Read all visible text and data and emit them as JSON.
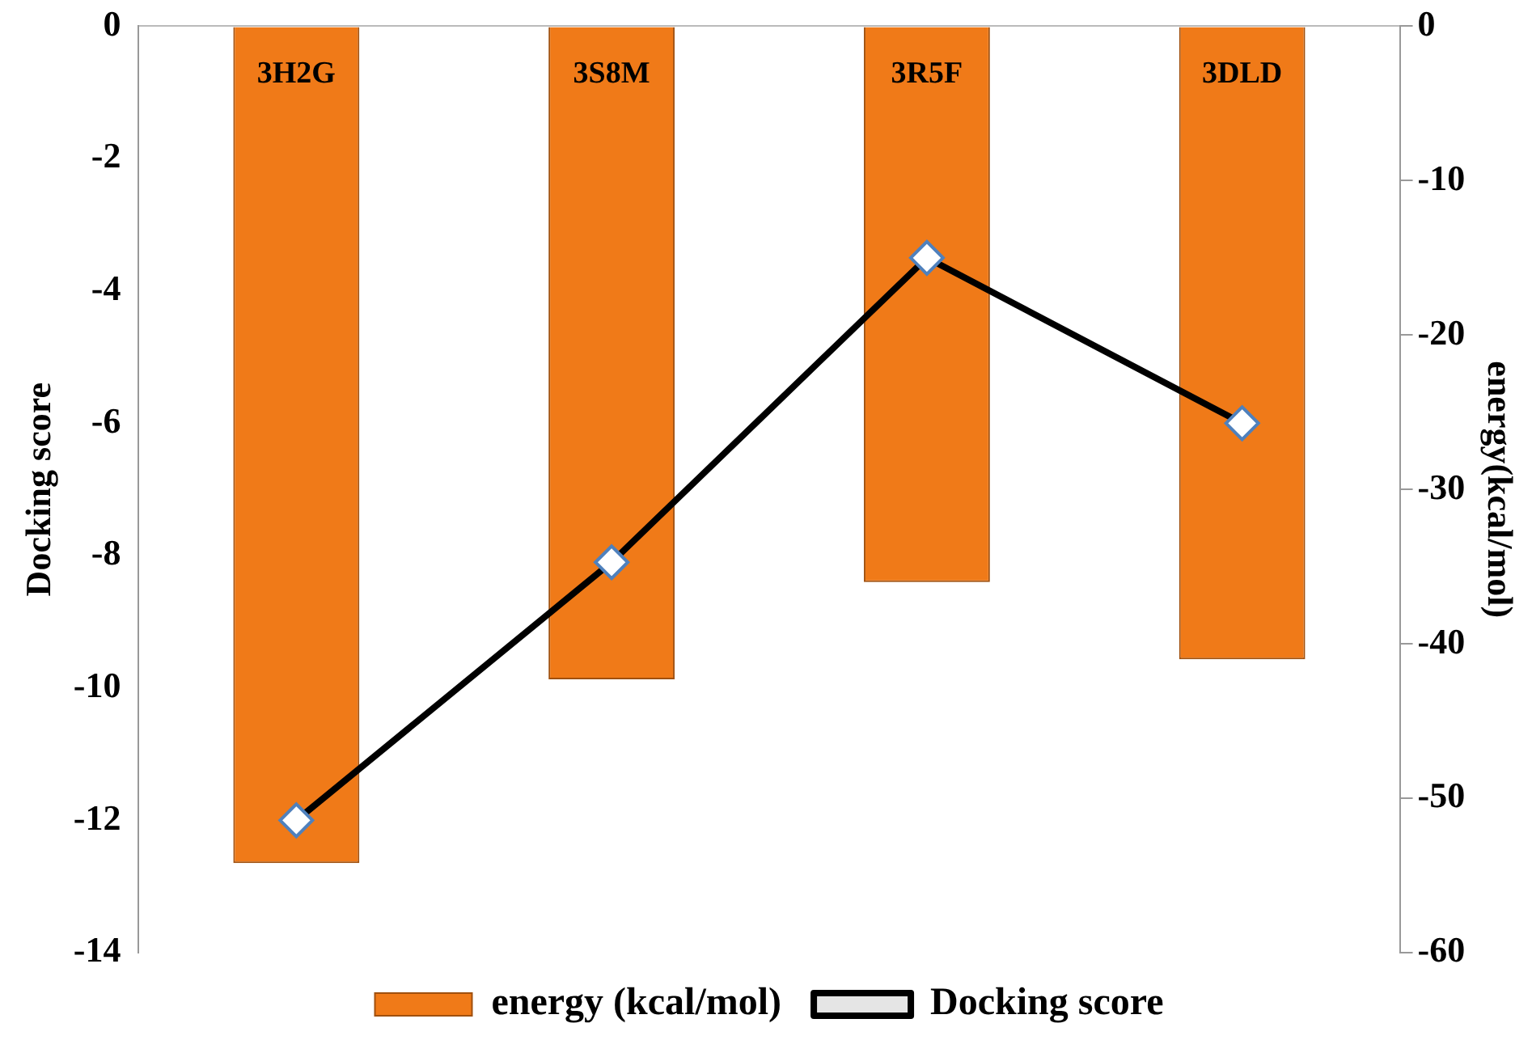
{
  "chart_data": {
    "type": "bar",
    "categories": [
      "3H2G",
      "3S8M",
      "3R5F",
      "3DLD"
    ],
    "ylabel": "Docking score",
    "y2label": "energy(kcal/mol)",
    "ylim": [
      -14,
      0
    ],
    "yticks": [
      -14,
      -12,
      -10,
      -8,
      -6,
      -4,
      -2,
      0
    ],
    "y2lim": [
      -60,
      0
    ],
    "y2ticks": [
      -60,
      -50,
      -40,
      -30,
      -20,
      -10,
      0
    ],
    "series": [
      {
        "name": "energy (kcal/mol)",
        "axis": "y2",
        "color": "#f07a18",
        "values": [
          -54.2,
          -42.3,
          -36.0,
          -41.0
        ]
      },
      {
        "name": "Docking score",
        "type": "line",
        "color": "#000000",
        "marker": "diamond",
        "values": [
          -12.0,
          -8.1,
          -3.5,
          -6.0
        ]
      }
    ],
    "grid": false,
    "legend": "bottom"
  }
}
